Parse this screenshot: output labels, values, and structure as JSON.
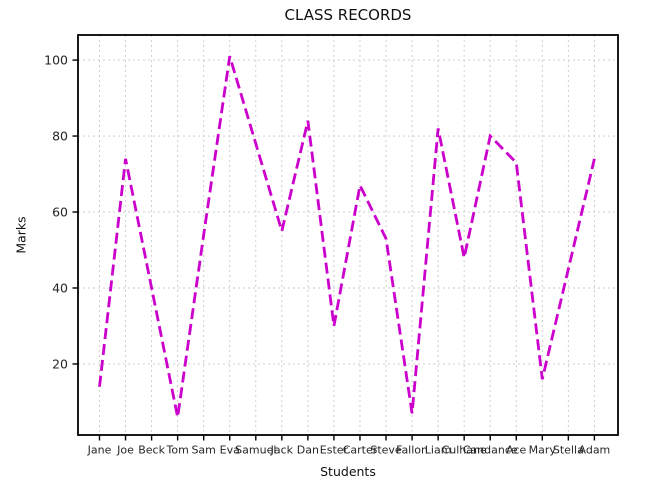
{
  "chart_data": {
    "type": "line",
    "title": "CLASS RECORDS",
    "xlabel": "Students",
    "ylabel": "Marks",
    "categories": [
      "Jane",
      "Joe",
      "Beck",
      "Tom",
      "Sam",
      "Eva",
      "Samuel",
      "Jack",
      "Dan",
      "Ester",
      "Carter",
      "Steve",
      "Fallon",
      "Liam",
      "Culhane",
      "Candance",
      "Ace",
      "Mary",
      "Stella",
      "Adam"
    ],
    "series": [
      {
        "name": "Marks",
        "values": [
          14,
          74,
          40,
          6,
          54,
          101,
          78,
          55,
          84,
          30,
          67,
          53,
          7,
          82,
          48,
          80,
          73,
          16,
          45,
          74
        ]
      }
    ],
    "yticks": [
      20,
      40,
      60,
      80,
      100
    ],
    "ylim": [
      1.3,
      106.6
    ],
    "grid": true,
    "legend_position": "none",
    "line_style": {
      "color": "#CC00CC",
      "dash": "dashed",
      "width": 2.8
    },
    "grid_color": "#c9c9c9",
    "spine_color": "#000000",
    "tick_label_color": "#262626"
  }
}
